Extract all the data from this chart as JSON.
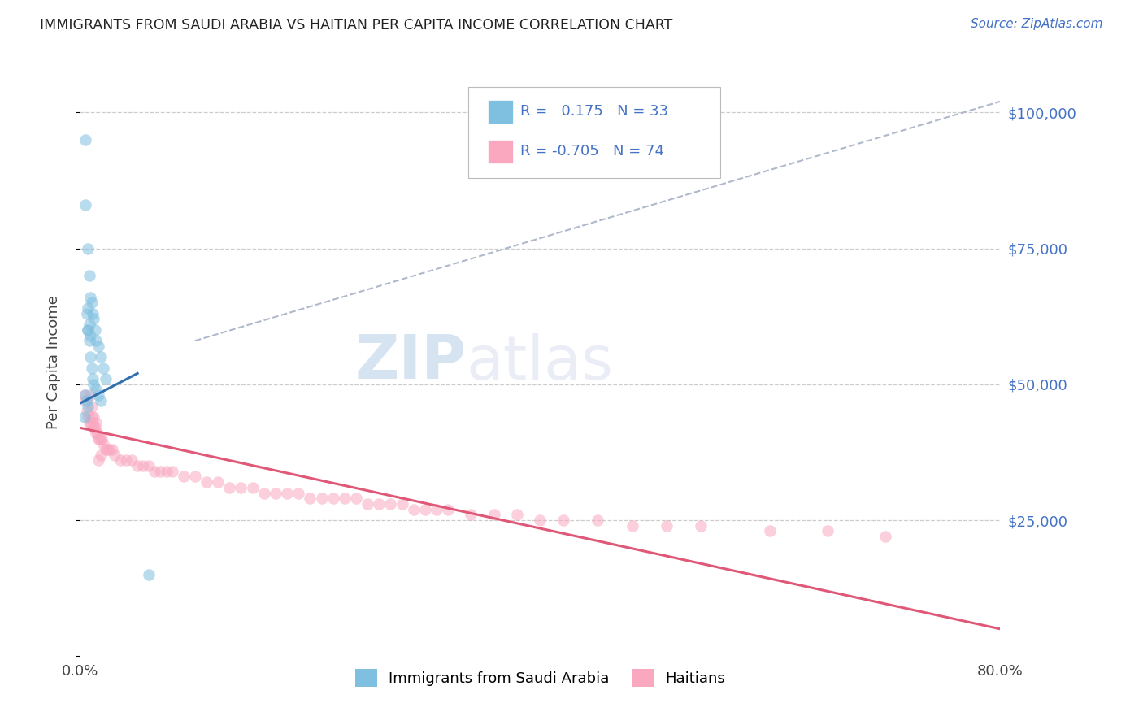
{
  "title": "IMMIGRANTS FROM SAUDI ARABIA VS HAITIAN PER CAPITA INCOME CORRELATION CHART",
  "source": "Source: ZipAtlas.com",
  "ylabel": "Per Capita Income",
  "xlim": [
    0.0,
    0.8
  ],
  "ylim": [
    0,
    108000
  ],
  "yticks": [
    0,
    25000,
    50000,
    75000,
    100000
  ],
  "xticks": [
    0.0,
    0.1,
    0.2,
    0.3,
    0.4,
    0.5,
    0.6,
    0.7,
    0.8
  ],
  "xtick_labels": [
    "0.0%",
    "",
    "",
    "",
    "",
    "",
    "",
    "",
    "80.0%"
  ],
  "legend_R1": "0.175",
  "legend_N1": "33",
  "legend_R2": "-0.705",
  "legend_N2": "74",
  "blue_color": "#7fbfdf",
  "pink_color": "#f9a8c0",
  "blue_line_color": "#3070b0",
  "pink_line_color": "#e05878",
  "dashed_line_color": "#b0b8cc",
  "watermark_zip": "ZIP",
  "watermark_atlas": "atlas",
  "saudi_x": [
    0.005,
    0.005,
    0.007,
    0.008,
    0.009,
    0.01,
    0.011,
    0.012,
    0.013,
    0.014,
    0.016,
    0.018,
    0.02,
    0.022,
    0.006,
    0.007,
    0.008,
    0.009,
    0.01,
    0.011,
    0.012,
    0.014,
    0.016,
    0.018,
    0.007,
    0.008,
    0.009,
    0.005,
    0.006,
    0.007,
    0.004,
    0.007,
    0.06
  ],
  "saudi_y": [
    95000,
    83000,
    75000,
    70000,
    66000,
    65000,
    63000,
    62000,
    60000,
    58000,
    57000,
    55000,
    53000,
    51000,
    63000,
    60000,
    58000,
    55000,
    53000,
    51000,
    50000,
    49000,
    48000,
    47000,
    64000,
    61000,
    59000,
    48000,
    47000,
    46000,
    44000,
    60000,
    15000
  ],
  "haitian_x": [
    0.004,
    0.005,
    0.006,
    0.007,
    0.008,
    0.009,
    0.01,
    0.011,
    0.012,
    0.013,
    0.014,
    0.015,
    0.016,
    0.017,
    0.018,
    0.019,
    0.02,
    0.022,
    0.024,
    0.026,
    0.028,
    0.03,
    0.035,
    0.04,
    0.045,
    0.05,
    0.055,
    0.06,
    0.065,
    0.07,
    0.075,
    0.08,
    0.09,
    0.1,
    0.11,
    0.12,
    0.13,
    0.14,
    0.15,
    0.16,
    0.17,
    0.18,
    0.19,
    0.2,
    0.21,
    0.22,
    0.23,
    0.24,
    0.25,
    0.26,
    0.27,
    0.28,
    0.29,
    0.3,
    0.31,
    0.32,
    0.34,
    0.36,
    0.38,
    0.4,
    0.42,
    0.45,
    0.48,
    0.51,
    0.54,
    0.6,
    0.65,
    0.7,
    0.009,
    0.01,
    0.012,
    0.014,
    0.016,
    0.018
  ],
  "haitian_y": [
    48000,
    47000,
    45000,
    44000,
    43000,
    43000,
    44000,
    43000,
    42000,
    42000,
    41000,
    41000,
    40000,
    40000,
    40000,
    40000,
    39000,
    38000,
    38000,
    38000,
    38000,
    37000,
    36000,
    36000,
    36000,
    35000,
    35000,
    35000,
    34000,
    34000,
    34000,
    34000,
    33000,
    33000,
    32000,
    32000,
    31000,
    31000,
    31000,
    30000,
    30000,
    30000,
    30000,
    29000,
    29000,
    29000,
    29000,
    29000,
    28000,
    28000,
    28000,
    28000,
    27000,
    27000,
    27000,
    27000,
    26000,
    26000,
    26000,
    25000,
    25000,
    25000,
    24000,
    24000,
    24000,
    23000,
    23000,
    22000,
    48000,
    46000,
    44000,
    43000,
    36000,
    37000
  ],
  "blue_line_x": [
    0.0,
    0.05
  ],
  "blue_line_y": [
    46500,
    52000
  ],
  "pink_line_x": [
    0.0,
    0.8
  ],
  "pink_line_y": [
    42000,
    5000
  ],
  "dash_line_x": [
    0.1,
    0.8
  ],
  "dash_line_y": [
    58000,
    102000
  ]
}
